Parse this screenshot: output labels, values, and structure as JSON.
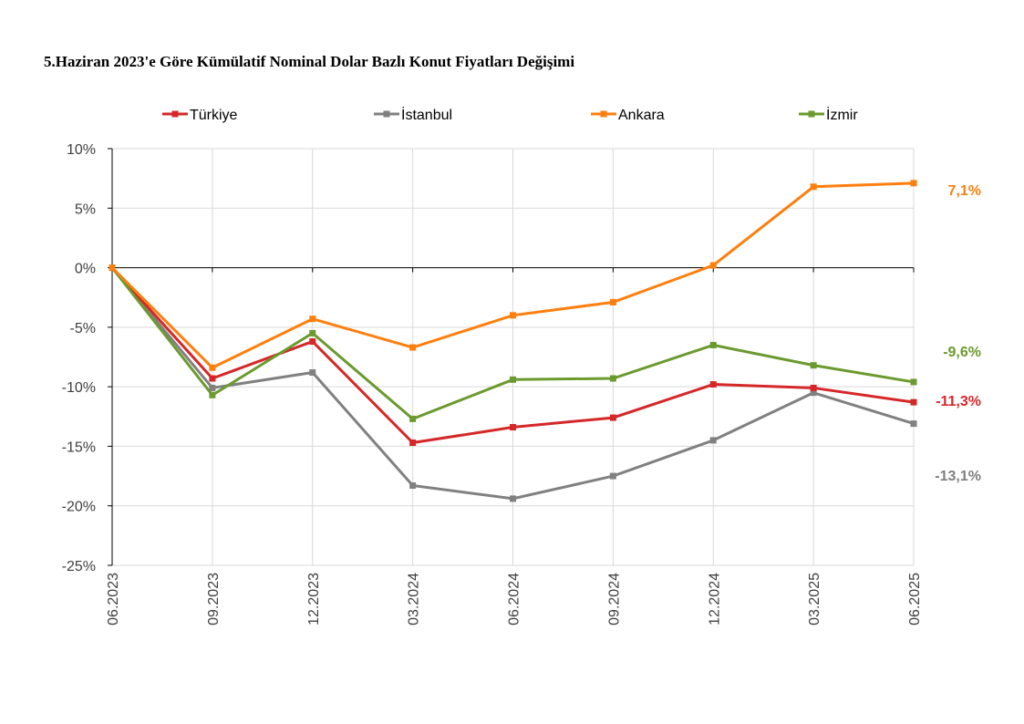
{
  "chart_data": {
    "type": "line",
    "title": "5.Haziran 2023'e Göre Kümülatif Nominal Dolar Bazlı Konut Fiyatları Değişimi",
    "xlabel": "",
    "ylabel": "",
    "categories": [
      "06.2023",
      "09.2023",
      "12.2023",
      "03.2024",
      "06.2024",
      "09.2024",
      "12.2024",
      "03.2025",
      "06.2025"
    ],
    "ylim": [
      -25,
      10
    ],
    "yticks": [
      10,
      5,
      0,
      -5,
      -10,
      -15,
      -20,
      -25
    ],
    "ytick_labels": [
      "10%",
      "5%",
      "0%",
      "-5%",
      "-10%",
      "-15%",
      "-20%",
      "-25%"
    ],
    "grid": true,
    "legend_position": "top",
    "series": [
      {
        "name": "Türkiye",
        "color": "#d62728",
        "values": [
          0,
          -9.3,
          -6.2,
          -14.7,
          -13.4,
          -12.6,
          -9.8,
          -10.1,
          -11.3
        ],
        "end_label": "-11,3%"
      },
      {
        "name": "İstanbul",
        "color": "#808080",
        "values": [
          0,
          -10.1,
          -8.8,
          -18.3,
          -19.4,
          -17.5,
          -14.5,
          -10.5,
          -13.1
        ],
        "end_label": "-13,1%"
      },
      {
        "name": "Ankara",
        "color": "#ff7f0e",
        "values": [
          0,
          -8.4,
          -4.3,
          -6.7,
          -4.0,
          -2.9,
          0.2,
          6.8,
          7.1
        ],
        "end_label": "7,1%"
      },
      {
        "name": "İzmir",
        "color": "#6b9a2f",
        "values": [
          0,
          -10.7,
          -5.5,
          -12.7,
          -9.4,
          -9.3,
          -6.5,
          -8.2,
          -9.6
        ],
        "end_label": "-9,6%"
      }
    ]
  }
}
